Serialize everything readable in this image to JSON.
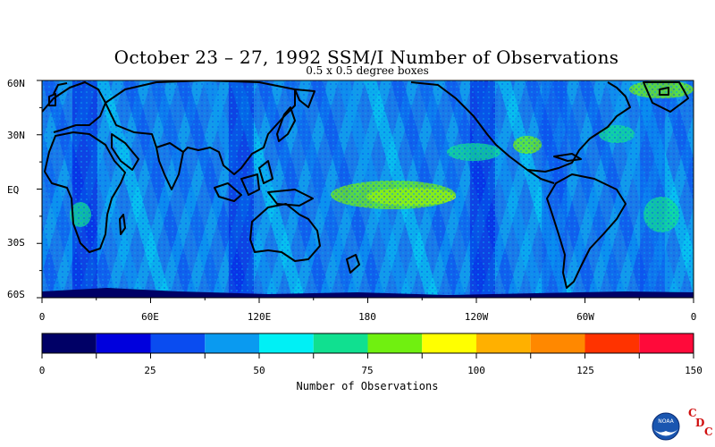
{
  "title": "October 23 – 27, 1992 SSM/I Number of Observations",
  "subtitle": "0.5 x 0.5 degree boxes",
  "map": {
    "lat_labels": [
      "60N",
      "30N",
      "EQ",
      "30S",
      "60S"
    ],
    "lon_labels": [
      "0",
      "60E",
      "120E",
      "180",
      "120W",
      "60W",
      "0"
    ],
    "land_outline_color": "#000000"
  },
  "colorbar": {
    "title": "Number of Observations",
    "tick_labels": [
      "0",
      "25",
      "50",
      "75",
      "100",
      "125",
      "150"
    ],
    "colors": [
      "#000066",
      "#0000dd",
      "#0a4cf0",
      "#0a9af0",
      "#00f0f5",
      "#10e090",
      "#70f010",
      "#ffff00",
      "#ffb000",
      "#ff8800",
      "#ff3300",
      "#ff0a3a"
    ]
  },
  "logo": {
    "name": "noaa-logo",
    "text": "NOAA",
    "letters": [
      "C",
      "D",
      "C"
    ]
  }
}
